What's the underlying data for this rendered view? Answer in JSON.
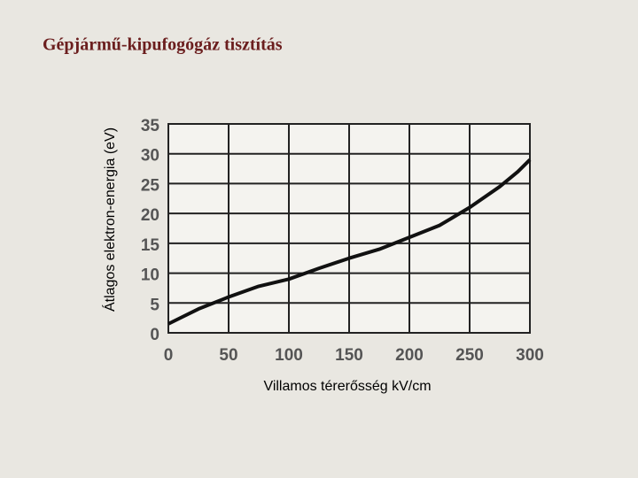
{
  "chart_data": {
    "type": "line",
    "title": "Gépjármű-kipufogógáz tisztítás",
    "x_label": "Villamos térerősség kV/cm",
    "y_label": "Átlagos elektron-energia (eV)",
    "x": [
      0,
      10,
      25,
      50,
      75,
      100,
      125,
      150,
      175,
      200,
      225,
      250,
      275,
      290,
      300
    ],
    "series": [
      {
        "color": "#111111",
        "values": [
          1.5,
          2.5,
          4,
          6,
          7.8,
          9,
          10.8,
          12.5,
          14,
          16,
          18,
          21,
          24.5,
          27,
          29
        ]
      }
    ],
    "xlim": [
      0,
      300
    ],
    "xticks": [
      0,
      50,
      100,
      150,
      200,
      250,
      300
    ],
    "ylim": [
      0,
      35
    ],
    "yticks": [
      0,
      5,
      10,
      15,
      20,
      25,
      30,
      35
    ],
    "grid": true
  }
}
